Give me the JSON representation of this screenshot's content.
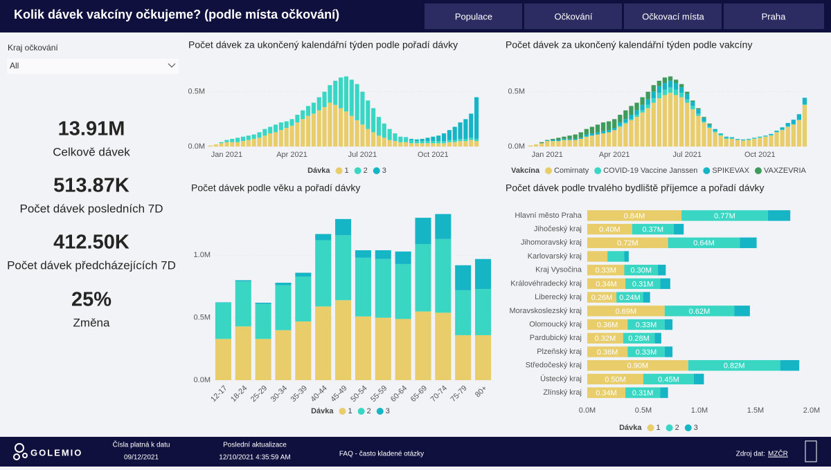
{
  "header": {
    "title": "Kolik dávek vakcíny očkujeme? (podle místa očkování)",
    "nav": [
      "Populace",
      "Očkování",
      "Očkovací místa",
      "Praha"
    ]
  },
  "filter": {
    "label": "Kraj očkování",
    "value": "All"
  },
  "kpis": [
    {
      "value": "13.91M",
      "label": "Celkově dávek"
    },
    {
      "value": "513.87K",
      "label": "Počet dávek posledních 7D"
    },
    {
      "value": "412.50K",
      "label": "Počet dávek předcházejících 7D"
    },
    {
      "value": "25%",
      "label": "Změna"
    }
  ],
  "footer": {
    "logo": "GOLEMIO",
    "valid_label": "Čísla platná k datu",
    "valid_date": "09/12/2021",
    "update_label": "Poslední aktualizace",
    "update_date": "12/10/2021 4:35:59 AM",
    "faq": "FAQ - často kladené otázky",
    "source_label": "Zdroj dat:",
    "source_link": "MZČR"
  },
  "chart_data": [
    {
      "type": "bar",
      "stacked": true,
      "grid": true,
      "title": "Počet dávek za ukončený kalendářní týden podle pořadí dávky",
      "legend_title": "Dávka",
      "categories": [
        null,
        null,
        null,
        "Jan 2021",
        null,
        null,
        null,
        null,
        null,
        null,
        null,
        null,
        null,
        null,
        null,
        "Apr 2021",
        null,
        null,
        null,
        null,
        null,
        null,
        null,
        null,
        null,
        null,
        null,
        null,
        "Jul 2021",
        null,
        null,
        null,
        null,
        null,
        null,
        null,
        null,
        null,
        null,
        null,
        null,
        "Oct 2021",
        null,
        null,
        null,
        null,
        null,
        null,
        null,
        null
      ],
      "ylim": [
        0,
        0.7
      ],
      "yticks": [
        {
          "value": 0,
          "label": "0.0M"
        },
        {
          "value": 0.5,
          "label": "0.5M"
        }
      ],
      "series": [
        {
          "name": "1",
          "color": "#e8cd6a",
          "values": [
            0.01,
            0.02,
            0.03,
            0.04,
            0.04,
            0.04,
            0.05,
            0.06,
            0.07,
            0.08,
            0.1,
            0.12,
            0.13,
            0.15,
            0.17,
            0.19,
            0.22,
            0.25,
            0.28,
            0.3,
            0.33,
            0.36,
            0.4,
            0.38,
            0.35,
            0.32,
            0.28,
            0.24,
            0.2,
            0.16,
            0.13,
            0.1,
            0.08,
            0.06,
            0.05,
            0.04,
            0.04,
            0.03,
            0.03,
            0.03,
            0.03,
            0.03,
            0.03,
            0.03,
            0.04,
            0.04,
            0.05,
            0.05,
            0.06,
            0.05
          ]
        },
        {
          "name": "2",
          "color": "#3ad6c4",
          "values": [
            0,
            0,
            0.01,
            0.02,
            0.03,
            0.04,
            0.04,
            0.04,
            0.04,
            0.05,
            0.06,
            0.06,
            0.07,
            0.07,
            0.06,
            0.06,
            0.07,
            0.08,
            0.09,
            0.1,
            0.12,
            0.14,
            0.16,
            0.22,
            0.28,
            0.32,
            0.33,
            0.33,
            0.3,
            0.26,
            0.22,
            0.17,
            0.13,
            0.1,
            0.07,
            0.05,
            0.04,
            0.03,
            0.02,
            0.02,
            0.02,
            0.02,
            0.02,
            0.02,
            0.02,
            0.02,
            0.02,
            0.02,
            0.02,
            0.02
          ]
        },
        {
          "name": "3",
          "color": "#15b5c6",
          "values": [
            0,
            0,
            0,
            0,
            0,
            0,
            0,
            0,
            0,
            0,
            0,
            0,
            0,
            0,
            0,
            0,
            0,
            0,
            0,
            0,
            0,
            0,
            0,
            0,
            0,
            0,
            0,
            0,
            0,
            0,
            0,
            0,
            0,
            0,
            0,
            0,
            0.005,
            0.01,
            0.015,
            0.02,
            0.03,
            0.04,
            0.05,
            0.07,
            0.09,
            0.12,
            0.15,
            0.18,
            0.22,
            0.38
          ]
        }
      ]
    },
    {
      "type": "bar",
      "stacked": true,
      "grid": true,
      "title": "Počet dávek za ukončený kalendářní týden podle vakcíny",
      "legend_title": "Vakcína",
      "categories": [
        null,
        null,
        null,
        "Jan 2021",
        null,
        null,
        null,
        null,
        null,
        null,
        null,
        null,
        null,
        null,
        null,
        "Apr 2021",
        null,
        null,
        null,
        null,
        null,
        null,
        null,
        null,
        null,
        null,
        null,
        null,
        "Jul 2021",
        null,
        null,
        null,
        null,
        null,
        null,
        null,
        null,
        null,
        null,
        null,
        null,
        "Oct 2021",
        null,
        null,
        null,
        null,
        null,
        null,
        null,
        null
      ],
      "ylim": [
        0,
        0.7
      ],
      "yticks": [
        {
          "value": 0,
          "label": "0.0M"
        },
        {
          "value": 0.5,
          "label": "0.5M"
        }
      ],
      "series": [
        {
          "name": "Comirnaty",
          "color": "#e8cd6a",
          "values": [
            0.01,
            0.02,
            0.03,
            0.05,
            0.05,
            0.05,
            0.06,
            0.06,
            0.06,
            0.07,
            0.09,
            0.1,
            0.11,
            0.12,
            0.13,
            0.15,
            0.18,
            0.21,
            0.24,
            0.27,
            0.31,
            0.35,
            0.4,
            0.44,
            0.47,
            0.49,
            0.47,
            0.45,
            0.4,
            0.34,
            0.28,
            0.22,
            0.17,
            0.13,
            0.1,
            0.07,
            0.07,
            0.06,
            0.055,
            0.06,
            0.07,
            0.08,
            0.09,
            0.1,
            0.13,
            0.15,
            0.18,
            0.2,
            0.24,
            0.38
          ]
        },
        {
          "name": "COVID-19 Vaccine Janssen",
          "color": "#3ad6c4",
          "values": [
            0,
            0,
            0,
            0,
            0,
            0,
            0,
            0,
            0,
            0,
            0,
            0,
            0,
            0,
            0,
            0,
            0.01,
            0.01,
            0.01,
            0.02,
            0.02,
            0.03,
            0.04,
            0.05,
            0.05,
            0.05,
            0.05,
            0.04,
            0.03,
            0.03,
            0.02,
            0.01,
            0.01,
            0.01,
            0.01,
            0.01,
            0.005,
            0.005,
            0.005,
            0.005,
            0.005,
            0.005,
            0.005,
            0.005,
            0.005,
            0.005,
            0.005,
            0.005,
            0.005,
            0.005
          ]
        },
        {
          "name": "SPIKEVAX",
          "color": "#15b5c6",
          "values": [
            0,
            0,
            0,
            0.005,
            0.01,
            0.01,
            0.01,
            0.01,
            0.01,
            0.01,
            0.02,
            0.02,
            0.02,
            0.02,
            0.02,
            0.02,
            0.03,
            0.03,
            0.04,
            0.04,
            0.05,
            0.05,
            0.06,
            0.06,
            0.06,
            0.06,
            0.06,
            0.05,
            0.05,
            0.04,
            0.04,
            0.03,
            0.02,
            0.02,
            0.01,
            0.01,
            0.01,
            0.005,
            0.005,
            0.005,
            0.005,
            0.005,
            0.005,
            0.01,
            0.01,
            0.02,
            0.03,
            0.04,
            0.05,
            0.06
          ]
        },
        {
          "name": "VAXZEVRIA",
          "color": "#3f9b5c",
          "values": [
            0,
            0,
            0.01,
            0.005,
            0.01,
            0.02,
            0.02,
            0.03,
            0.04,
            0.05,
            0.05,
            0.06,
            0.07,
            0.08,
            0.08,
            0.08,
            0.07,
            0.08,
            0.08,
            0.07,
            0.07,
            0.07,
            0.06,
            0.05,
            0.05,
            0.04,
            0.03,
            0.03,
            0.02,
            0.01,
            0.01,
            0.01,
            0.01,
            0,
            0,
            0,
            0,
            0,
            0,
            0,
            0,
            0,
            0,
            0,
            0,
            0,
            0,
            0,
            0,
            0
          ]
        }
      ]
    },
    {
      "type": "bar",
      "stacked": true,
      "grid": true,
      "title": "Počet dávek podle věku a pořadí dávky",
      "legend_title": "Dávka",
      "categories": [
        "12-17",
        "18-24",
        "25-29",
        "30-34",
        "35-39",
        "40-44",
        "45-49",
        "50-54",
        "55-59",
        "60-64",
        "65-69",
        "70-74",
        "75-79",
        "80+"
      ],
      "ylim": [
        0,
        1.4
      ],
      "yticks": [
        {
          "value": 0,
          "label": "0.0M"
        },
        {
          "value": 0.5,
          "label": "0.5M"
        },
        {
          "value": 1,
          "label": "1.0M"
        }
      ],
      "series": [
        {
          "name": "1",
          "color": "#e8cd6a",
          "values": [
            0.33,
            0.43,
            0.33,
            0.4,
            0.47,
            0.59,
            0.64,
            0.51,
            0.5,
            0.49,
            0.55,
            0.54,
            0.36,
            0.36
          ]
        },
        {
          "name": "2",
          "color": "#3ad6c4",
          "values": [
            0.29,
            0.36,
            0.28,
            0.36,
            0.36,
            0.53,
            0.52,
            0.47,
            0.47,
            0.44,
            0.54,
            0.59,
            0.36,
            0.37
          ]
        },
        {
          "name": "3",
          "color": "#15b5c6",
          "values": [
            0.003,
            0.01,
            0.01,
            0.02,
            0.03,
            0.05,
            0.13,
            0.06,
            0.07,
            0.1,
            0.21,
            0.2,
            0.2,
            0.24
          ]
        }
      ]
    },
    {
      "type": "barh",
      "stacked": true,
      "grid": false,
      "title": "Počet dávek podle trvalého bydliště příjemce a pořadí dávky",
      "legend_title": "Dávka",
      "categories": [
        "Hlavní město Praha",
        "Jihočeský kraj",
        "Jihomoravský kraj",
        "Karlovarský kraj",
        "Kraj Vysočina",
        "Královéhradecký kraj",
        "Liberecký kraj",
        "Moravskoslezský kraj",
        "Olomoucký kraj",
        "Pardubický kraj",
        "Plzeňský kraj",
        "Středočeský kraj",
        "Ústecký kraj",
        "Zlínský kraj"
      ],
      "xlim": [
        0,
        2
      ],
      "xticks": [
        {
          "value": 0,
          "label": "0.0M"
        },
        {
          "value": 0.5,
          "label": "0.5M"
        },
        {
          "value": 1,
          "label": "1.0M"
        },
        {
          "value": 1.5,
          "label": "1.5M"
        },
        {
          "value": 2,
          "label": "2.0M"
        }
      ],
      "series": [
        {
          "name": "1",
          "color": "#e8cd6a",
          "values": [
            0.84,
            0.4,
            0.72,
            0.18,
            0.33,
            0.34,
            0.26,
            0.69,
            0.36,
            0.32,
            0.36,
            0.9,
            0.5,
            0.34
          ],
          "value_labels": [
            "0.84M",
            "0.40M",
            "0.72M",
            null,
            "0.33M",
            "0.34M",
            "0.26M",
            "0.69M",
            "0.36M",
            "0.32M",
            "0.36M",
            "0.90M",
            "0.50M",
            "0.34M"
          ]
        },
        {
          "name": "2",
          "color": "#3ad6c4",
          "values": [
            0.77,
            0.37,
            0.64,
            0.15,
            0.3,
            0.31,
            0.24,
            0.62,
            0.33,
            0.28,
            0.33,
            0.82,
            0.45,
            0.31
          ],
          "value_labels": [
            "0.77M",
            "0.37M",
            "0.64M",
            null,
            "0.30M",
            "0.31M",
            "0.24M",
            "0.62M",
            "0.33M",
            "0.28M",
            "0.33M",
            "0.82M",
            "0.45M",
            "0.31M"
          ]
        },
        {
          "name": "3",
          "color": "#15b5c6",
          "values": [
            0.2,
            0.09,
            0.15,
            0.04,
            0.07,
            0.09,
            0.06,
            0.14,
            0.07,
            0.06,
            0.07,
            0.17,
            0.09,
            0.07
          ]
        }
      ]
    }
  ]
}
